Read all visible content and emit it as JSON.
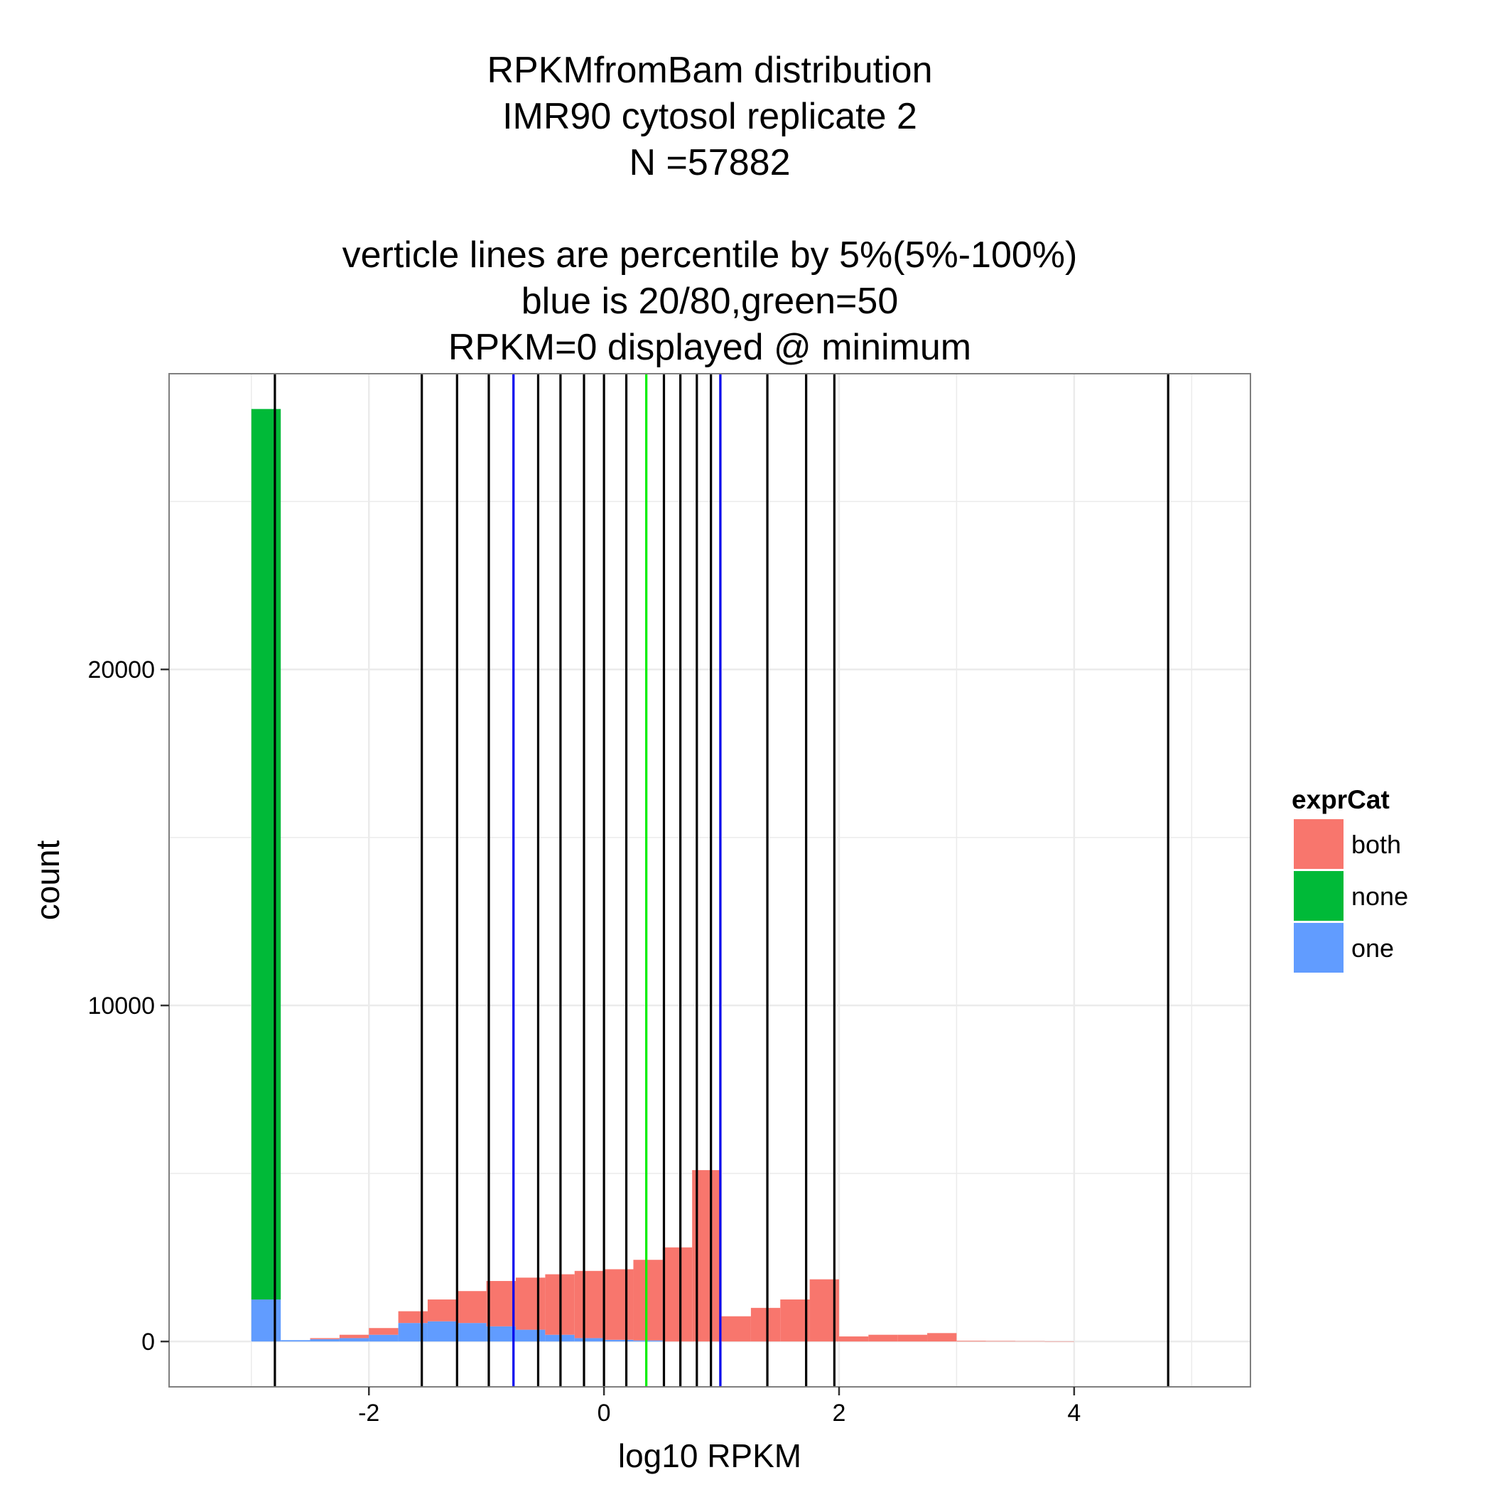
{
  "chart_data": {
    "type": "bar",
    "title_lines": [
      "RPKMfromBam distribution",
      "IMR90 cytosol replicate 2",
      "N =57882",
      "",
      "verticle lines are percentile by 5%(5%-100%)",
      "blue is 20/80,green=50",
      "RPKM=0 displayed @ minimum"
    ],
    "xlabel": "log10 RPKM",
    "ylabel": "count",
    "xlim": [
      -3.7,
      5.5
    ],
    "ylim": [
      -1350,
      28800
    ],
    "x_ticks": [
      -2,
      0,
      2,
      4
    ],
    "x_tick_labels": [
      "-2",
      "0",
      "2",
      "4"
    ],
    "y_ticks": [
      0,
      10000,
      20000
    ],
    "y_tick_labels": [
      "0",
      "10000",
      "20000"
    ],
    "grid": true,
    "stacking": "stacked",
    "bin_width": 0.25,
    "bin_starts": [
      -3.0,
      -2.75,
      -2.5,
      -2.25,
      -2.0,
      -1.75,
      -1.5,
      -1.25,
      -1.0,
      -0.75,
      -0.5,
      -0.25,
      0.0,
      0.25,
      0.5,
      0.75,
      1.0,
      1.25,
      1.5,
      1.75,
      2.0,
      2.25,
      2.5,
      2.75,
      3.0,
      3.25,
      3.5,
      3.75
    ],
    "series": [
      {
        "name": "both",
        "color": "#F8766D",
        "values": [
          0,
          0,
          30,
          100,
          200,
          350,
          650,
          950,
          1350,
          1550,
          1800,
          2000,
          2100,
          2400,
          2800,
          5100,
          750,
          1000,
          1250,
          1850,
          150,
          200,
          200,
          250,
          20,
          15,
          10,
          5
        ]
      },
      {
        "name": "none",
        "color": "#00BA38",
        "values": [
          26500,
          0,
          0,
          0,
          0,
          0,
          0,
          0,
          0,
          0,
          0,
          0,
          0,
          0,
          0,
          0,
          0,
          0,
          0,
          0,
          0,
          0,
          0,
          0,
          0,
          0,
          0,
          0
        ]
      },
      {
        "name": "one",
        "color": "#619CFF",
        "values": [
          1250,
          40,
          70,
          100,
          200,
          550,
          600,
          550,
          450,
          350,
          200,
          100,
          50,
          30,
          0,
          0,
          0,
          0,
          0,
          0,
          0,
          0,
          0,
          0,
          0,
          0,
          0,
          0
        ]
      }
    ],
    "percentile_lines": [
      {
        "x": -2.8,
        "color": "#000000"
      },
      {
        "x": -1.55,
        "color": "#000000"
      },
      {
        "x": -1.25,
        "color": "#000000"
      },
      {
        "x": -0.98,
        "color": "#000000"
      },
      {
        "x": -0.77,
        "color": "#0000EE"
      },
      {
        "x": -0.56,
        "color": "#000000"
      },
      {
        "x": -0.37,
        "color": "#000000"
      },
      {
        "x": -0.17,
        "color": "#000000"
      },
      {
        "x": 0.0,
        "color": "#000000"
      },
      {
        "x": 0.19,
        "color": "#000000"
      },
      {
        "x": 0.36,
        "color": "#00EE00"
      },
      {
        "x": 0.51,
        "color": "#000000"
      },
      {
        "x": 0.65,
        "color": "#000000"
      },
      {
        "x": 0.79,
        "color": "#000000"
      },
      {
        "x": 0.91,
        "color": "#000000"
      },
      {
        "x": 0.99,
        "color": "#0000EE"
      },
      {
        "x": 1.39,
        "color": "#000000"
      },
      {
        "x": 1.72,
        "color": "#000000"
      },
      {
        "x": 1.96,
        "color": "#000000"
      },
      {
        "x": 4.8,
        "color": "#000000"
      }
    ],
    "legend": {
      "title": "exprCat",
      "position": "right",
      "items": [
        {
          "label": "both",
          "color": "#F8766D"
        },
        {
          "label": "none",
          "color": "#00BA38"
        },
        {
          "label": "one",
          "color": "#619CFF"
        }
      ]
    },
    "panel_background": "#FFFFFF",
    "grid_color": "#EBEBEB",
    "border_color": "#7F7F7F"
  }
}
